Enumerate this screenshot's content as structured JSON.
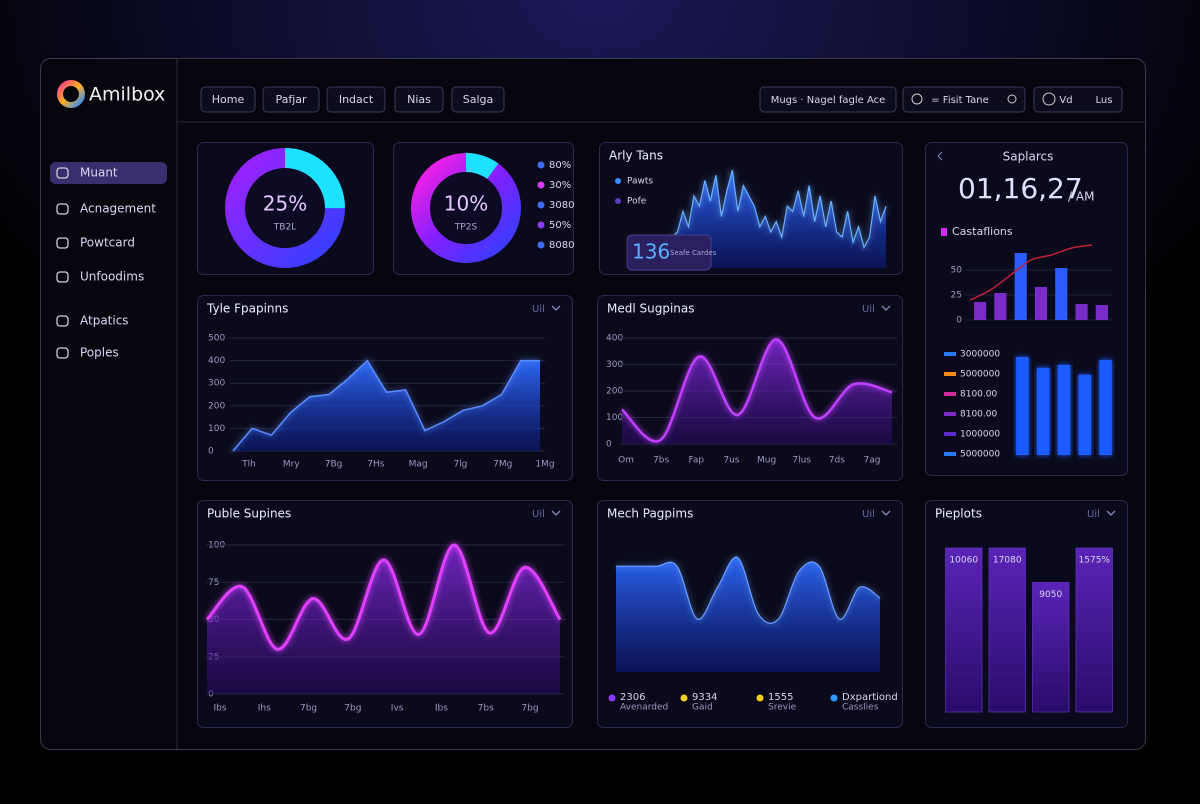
{
  "brand": "Amilbox",
  "sidebar": [
    {
      "label": "Muant",
      "active": true
    },
    {
      "label": "Acnagement"
    },
    {
      "label": "Powtcard"
    },
    {
      "label": "Unfoodims"
    },
    {
      "label": "Atpatics"
    },
    {
      "label": "Poples"
    }
  ],
  "nav": [
    "Home",
    "Pafjar",
    "Indact",
    "Nias",
    "Salga"
  ],
  "toolbar": [
    "Mugs · Nagel fagle Ace",
    "= Fisit Tane",
    "Vd",
    "Lus"
  ],
  "donut_a": {
    "type": "donut",
    "value": 25,
    "value_label": "25%",
    "caption": "TB2L"
  },
  "donut_b": {
    "type": "donut",
    "value": 10,
    "value_label": "10%",
    "caption": "TP2S",
    "legend": [
      {
        "label": "80%",
        "color": "#3b6cff"
      },
      {
        "label": "30%",
        "color": "#d23cff"
      },
      {
        "label": "3080",
        "color": "#3b6cff"
      },
      {
        "label": "50%",
        "color": "#8a3cff"
      },
      {
        "label": "8080",
        "color": "#3b6cff"
      }
    ]
  },
  "activity": {
    "type": "area",
    "title": "Arly Tans",
    "legend": [
      {
        "label": "Pawts",
        "color": "#3b8cff"
      },
      {
        "label": "Pofe",
        "color": "#5a3cc0"
      }
    ],
    "badge": "136",
    "badge_caption": "Seafe Cardes",
    "ylim": [
      0,
      100
    ],
    "values": [
      30,
      35,
      55,
      40,
      70,
      60,
      85,
      65,
      90,
      50,
      75,
      95,
      55,
      80,
      70,
      60,
      40,
      50,
      35,
      45,
      30,
      60,
      55,
      75,
      50,
      80,
      45,
      70,
      40,
      65,
      35,
      30,
      55,
      25,
      40,
      20,
      30,
      70,
      45,
      60
    ]
  },
  "clock": {
    "title": "Saplarcs",
    "time": "01,16,27",
    "suffix": "/ AM",
    "subtitle": "Castaflions",
    "bars": {
      "ylim": [
        0,
        80
      ],
      "yticks": [
        0,
        25,
        50
      ],
      "values": [
        18,
        27,
        67,
        33,
        52,
        16,
        15
      ],
      "colors": [
        "#7a2cc8",
        "#7a2cc8",
        "#2d5cff",
        "#7a2cc8",
        "#2d5cff",
        "#7a2cc8",
        "#7a2cc8"
      ],
      "line": [
        20,
        30,
        45,
        60,
        65,
        72,
        75
      ],
      "line_color": "#c0223a"
    },
    "bars2": {
      "ylim": [
        0,
        100
      ],
      "values": [
        100,
        89,
        92,
        82,
        97
      ],
      "color": "#1f5cff",
      "legend": [
        {
          "label": "3000000",
          "color": "#2a7cff"
        },
        {
          "label": "5000000",
          "color": "#ff8a1c"
        },
        {
          "label": "8100.00",
          "color": "#d02a9c"
        },
        {
          "label": "8100.00",
          "color": "#7a2cc8"
        },
        {
          "label": "1000000",
          "color": "#5a2cc8"
        },
        {
          "label": "5000000",
          "color": "#2a7cff"
        }
      ]
    }
  },
  "trend": {
    "type": "area",
    "title": "Tyle Fpapinns",
    "menu": "Uil",
    "ylim": [
      0,
      500
    ],
    "yticks": [
      0,
      100,
      200,
      300,
      400,
      500
    ],
    "values": [
      0,
      100,
      70,
      170,
      240,
      250,
      320,
      400,
      260,
      270,
      90,
      130,
      180,
      200,
      250,
      400,
      400
    ],
    "xlabels": [
      "Tlh",
      "Mry",
      "7Bg",
      "7Hs",
      "Mag",
      "7lg",
      "7Mg",
      "1Mg"
    ],
    "color": "#2f6bff"
  },
  "medal": {
    "type": "wave",
    "title": "Medl Sugpinas",
    "menu": "Uil",
    "ylim": [
      0,
      400
    ],
    "yticks": [
      0,
      100,
      200,
      300,
      400
    ],
    "values": [
      130,
      15,
      330,
      110,
      395,
      100,
      225,
      195
    ],
    "xlabels": [
      "Om",
      "7bs",
      "Fap",
      "7us",
      "Mug",
      "7lus",
      "7ds",
      "7ag"
    ],
    "color": "#c040ff"
  },
  "pulse": {
    "type": "wave",
    "title": "Puble Supines",
    "menu": "Uil",
    "ylim": [
      0,
      100
    ],
    "yticks": [
      0,
      25,
      50,
      75,
      100
    ],
    "values": [
      50,
      72,
      30,
      64,
      37,
      90,
      40,
      100,
      41,
      85,
      50
    ],
    "xlabels": [
      "Ibs",
      "Ihs",
      "7bg",
      "7bg",
      "Ivs",
      "Ibs",
      "7bs",
      "7bg"
    ],
    "color": "#e040ff"
  },
  "mesh": {
    "type": "area",
    "title": "Mech Pagpims",
    "menu": "Uil",
    "ylim": [
      0,
      120
    ],
    "values": [
      100,
      100,
      100,
      100,
      50,
      80,
      108,
      55,
      50,
      95,
      100,
      50,
      80,
      70
    ],
    "color": "#1f6cff",
    "legend": [
      {
        "label": "2306",
        "note": "Avenarded",
        "color": "#8a3cff"
      },
      {
        "label": "9334",
        "note": "Gaid",
        "color": "#f0d020"
      },
      {
        "label": "1555",
        "note": "Srevie",
        "color": "#f0d020"
      },
      {
        "label": "Dxpartiond",
        "note": "Casslies",
        "color": "#2a9cff"
      }
    ]
  },
  "pieplots": {
    "type": "bar",
    "title": "Pieplots",
    "menu": "Uil",
    "ylim": [
      0,
      100
    ],
    "values": [
      100,
      100,
      79,
      100
    ],
    "tags": [
      "10060",
      "17080",
      "9050",
      "1575%"
    ],
    "color": "#4a1a9c"
  }
}
